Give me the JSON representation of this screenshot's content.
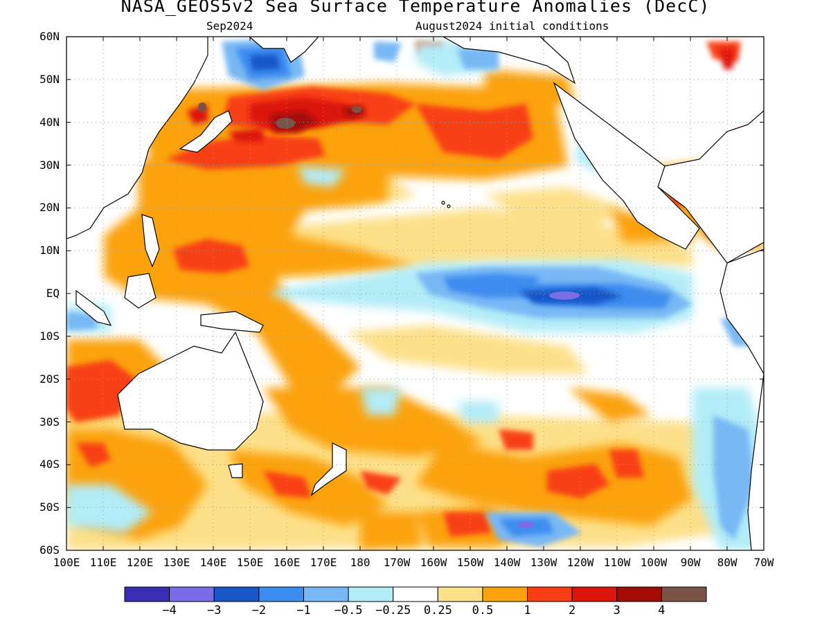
{
  "title": "NASA_GEOS5v2 Sea Surface Temperature Anomalies (DecC)",
  "subtitle_left": "Sep2024",
  "subtitle_right": "August2024 initial conditions",
  "lat_labels": [
    "60N",
    "50N",
    "40N",
    "30N",
    "20N",
    "10N",
    "EQ",
    "10S",
    "20S",
    "30S",
    "40S",
    "50S",
    "60S"
  ],
  "lon_labels": [
    "100E",
    "110E",
    "120E",
    "130E",
    "140E",
    "150E",
    "160E",
    "170E",
    "180",
    "170W",
    "160W",
    "150W",
    "140W",
    "130W",
    "120W",
    "110W",
    "100W",
    "90W",
    "80W",
    "70W"
  ],
  "colorbar": {
    "colors": [
      "#3a2db5",
      "#7b6de8",
      "#1957c9",
      "#3d8cf0",
      "#78b8f5",
      "#b2ecf7",
      "#ffffff",
      "#fde08a",
      "#fba20c",
      "#f83f13",
      "#dc150b",
      "#a50b07",
      "#7a5346"
    ],
    "labels": [
      "−4",
      "−3",
      "−2",
      "−1",
      "−0.5",
      "−0.25",
      "0.25",
      "0.5",
      "1",
      "2",
      "3",
      "4"
    ]
  }
}
